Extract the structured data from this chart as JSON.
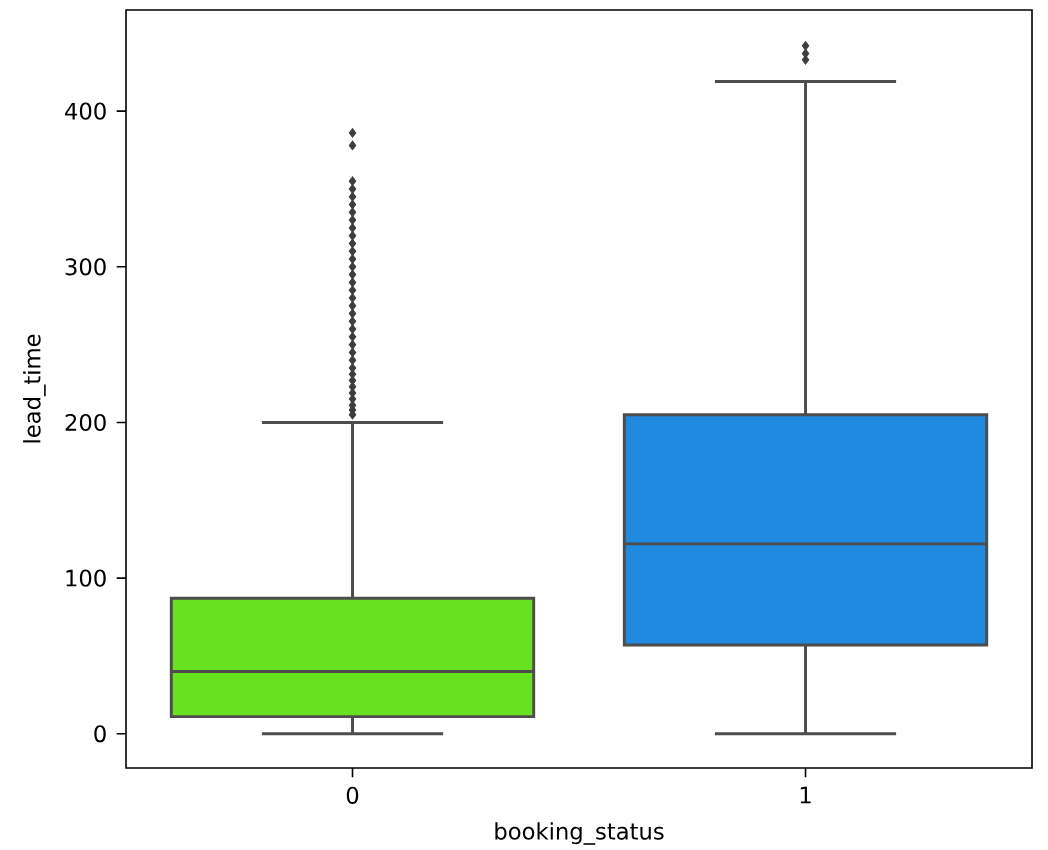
{
  "chart_data": {
    "type": "box",
    "xlabel": "booking_status",
    "ylabel": "lead_time",
    "categories": [
      "0",
      "1"
    ],
    "colors": [
      "#66e21f",
      "#2089e0"
    ],
    "boxes": [
      {
        "low": 0,
        "q1": 11,
        "median": 40,
        "q3": 87,
        "high": 200,
        "outliers": [
          205,
          208,
          211,
          215,
          219,
          223,
          227,
          231,
          235,
          240,
          245,
          250,
          255,
          260,
          265,
          270,
          275,
          280,
          285,
          290,
          295,
          300,
          305,
          310,
          315,
          320,
          325,
          330,
          335,
          340,
          345,
          350,
          355,
          378,
          386
        ]
      },
      {
        "low": 0,
        "q1": 57,
        "median": 122,
        "q3": 205,
        "high": 419,
        "outliers": [
          433,
          437,
          442
        ]
      }
    ],
    "ylim": [
      -22,
      465
    ],
    "yticks": [
      0,
      100,
      200,
      300,
      400
    ],
    "marker": "diamond",
    "grid": false
  }
}
